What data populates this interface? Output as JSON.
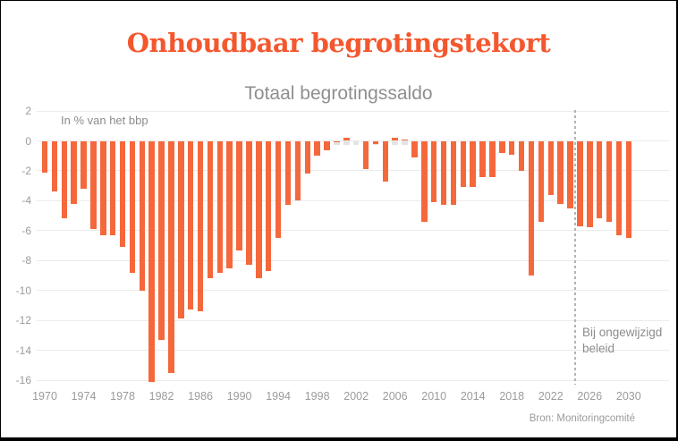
{
  "page": {
    "title": "Onhoudbaar begrotingstekort",
    "source": "Bron: Monitoringcomité"
  },
  "chart_data": {
    "type": "bar",
    "title": "Totaal begrotingssaldo",
    "unit_label": "In % van het bbp",
    "xlabel": "",
    "ylabel": "In % van het bbp",
    "ylim": [
      -16,
      2
    ],
    "grid": "horizontal",
    "legend": "none",
    "y_ticks": [
      2,
      0,
      -2,
      -4,
      -6,
      -8,
      -10,
      -12,
      -14,
      -16
    ],
    "x_tick_years": [
      1970,
      1974,
      1978,
      1982,
      1986,
      1990,
      1994,
      1998,
      2002,
      2006,
      2010,
      2014,
      2018,
      2022,
      2026,
      2030
    ],
    "years": [
      1970,
      1971,
      1972,
      1973,
      1974,
      1975,
      1976,
      1977,
      1978,
      1979,
      1980,
      1981,
      1982,
      1983,
      1984,
      1985,
      1986,
      1987,
      1988,
      1989,
      1990,
      1991,
      1992,
      1993,
      1994,
      1995,
      1996,
      1997,
      1998,
      1999,
      2000,
      2001,
      2002,
      2003,
      2004,
      2005,
      2006,
      2007,
      2008,
      2009,
      2010,
      2011,
      2012,
      2013,
      2014,
      2015,
      2016,
      2017,
      2018,
      2019,
      2020,
      2021,
      2022,
      2023,
      2024,
      2025,
      2026,
      2027,
      2028,
      2029,
      2030
    ],
    "values": [
      -2.1,
      -3.4,
      -5.2,
      -4.2,
      -3.2,
      -5.9,
      -6.3,
      -6.3,
      -7.1,
      -8.8,
      -10.0,
      -16.1,
      -13.3,
      -15.5,
      -11.9,
      -11.3,
      -11.4,
      -9.2,
      -8.8,
      -8.5,
      -7.3,
      -8.3,
      -9.2,
      -8.7,
      -6.5,
      -4.3,
      -4.0,
      -2.2,
      -1.0,
      -0.6,
      -0.1,
      0.2,
      0.0,
      -1.9,
      -0.2,
      -2.7,
      0.2,
      0.1,
      -1.1,
      -5.4,
      -4.1,
      -4.3,
      -4.3,
      -3.1,
      -3.1,
      -2.4,
      -2.4,
      -0.8,
      -0.9,
      -2.0,
      -9.0,
      -5.4,
      -3.6,
      -4.2,
      -4.5,
      -5.7,
      -5.8,
      -5.2,
      -5.4,
      -6.3,
      -6.5
    ],
    "annotation": {
      "text": "Bij ongewijzigd beleid",
      "divider_between_years": [
        2024,
        2025
      ]
    },
    "colors": {
      "bar": "#f5683c",
      "title": "#f4572e",
      "subtitle_text": "#8f8f8f",
      "axis_text": "#9b9b9b",
      "grid": "#ebebeb",
      "divider": "#b3b3b3",
      "annotation_text": "#8c8c8c"
    }
  }
}
